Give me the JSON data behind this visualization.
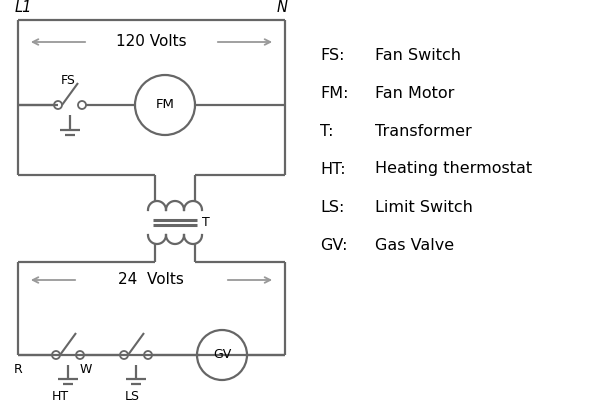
{
  "bg_color": "#ffffff",
  "line_color": "#666666",
  "arrow_color": "#999999",
  "text_color": "#000000",
  "legend": {
    "FS": "Fan Switch",
    "FM": "Fan Motor",
    "T": "Transformer",
    "HT": "Heating thermostat",
    "LS": "Limit Switch",
    "GV": "Gas Valve"
  },
  "lw": 1.6,
  "font_size": 10.5
}
